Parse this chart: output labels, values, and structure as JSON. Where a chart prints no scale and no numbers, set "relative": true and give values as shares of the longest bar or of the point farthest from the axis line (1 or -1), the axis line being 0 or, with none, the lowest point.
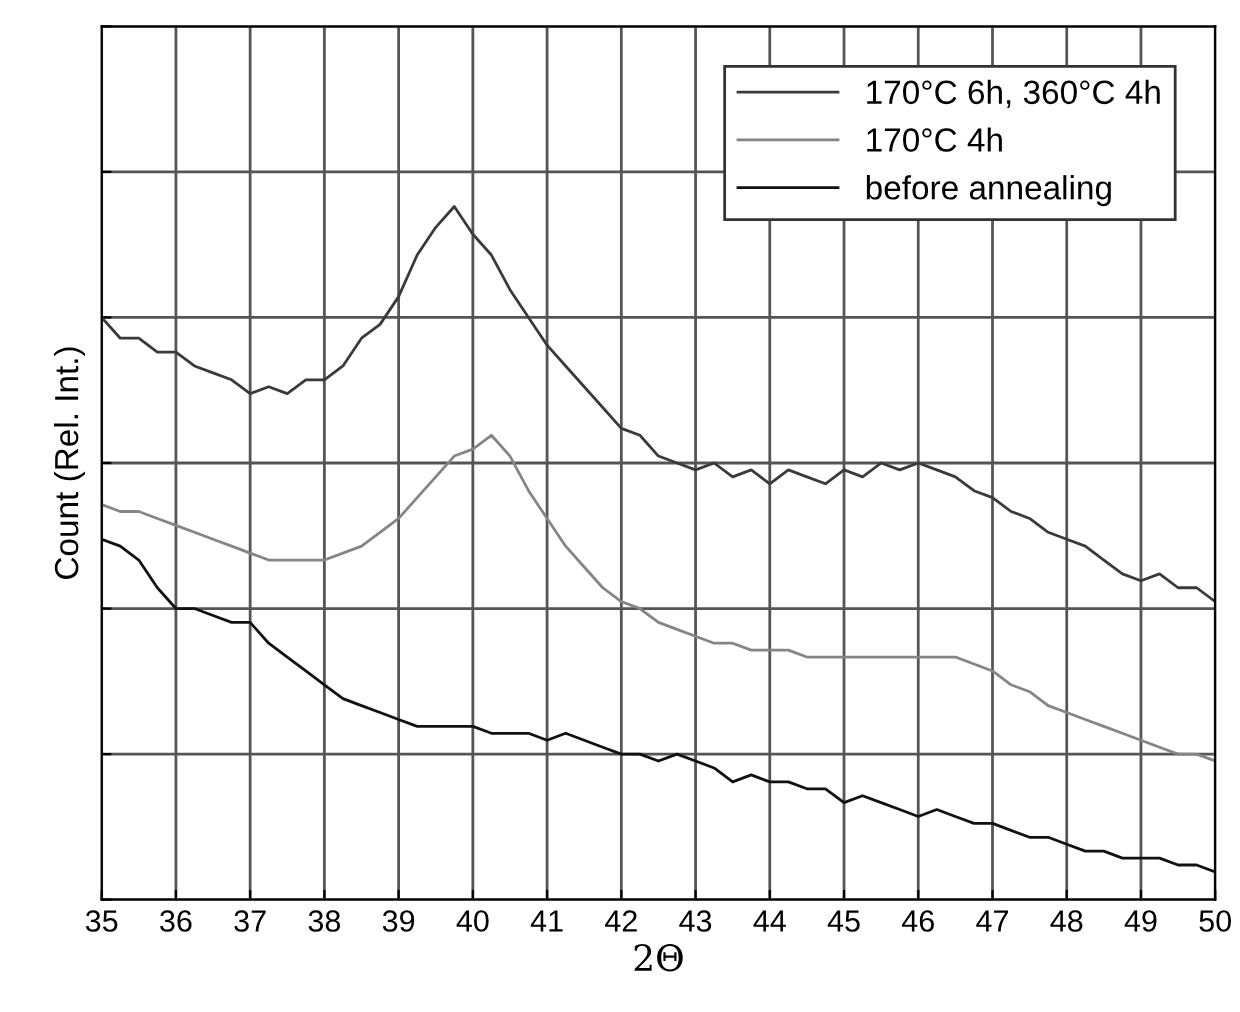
{
  "chart_data": {
    "type": "line",
    "relative": true,
    "xlabel": "2Θ",
    "ylabel": "Count (Rel. Int.)",
    "x": [
      35,
      35.25,
      35.5,
      35.75,
      36,
      36.25,
      36.5,
      36.75,
      37,
      37.25,
      37.5,
      37.75,
      38,
      38.25,
      38.5,
      38.75,
      39,
      39.25,
      39.5,
      39.75,
      40,
      40.25,
      40.5,
      40.75,
      41,
      41.25,
      41.5,
      41.75,
      42,
      42.25,
      42.5,
      42.75,
      43,
      43.25,
      43.5,
      43.75,
      44,
      44.25,
      44.5,
      44.75,
      45,
      45.25,
      45.5,
      45.75,
      46,
      46.25,
      46.5,
      46.75,
      47,
      47.25,
      47.5,
      47.75,
      48,
      48.25,
      48.5,
      48.75,
      49,
      49.25,
      49.5,
      49.75,
      50
    ],
    "series": [
      {
        "name": "170°C 6h, 360°C 4h",
        "color": "#3a3a3a",
        "values": [
          0.84,
          0.81,
          0.81,
          0.79,
          0.79,
          0.77,
          0.76,
          0.75,
          0.73,
          0.74,
          0.73,
          0.75,
          0.75,
          0.77,
          0.81,
          0.83,
          0.87,
          0.93,
          0.97,
          1.0,
          0.96,
          0.93,
          0.88,
          0.84,
          0.8,
          0.77,
          0.74,
          0.71,
          0.68,
          0.67,
          0.64,
          0.63,
          0.62,
          0.63,
          0.61,
          0.62,
          0.6,
          0.62,
          0.61,
          0.6,
          0.62,
          0.61,
          0.63,
          0.62,
          0.63,
          0.62,
          0.61,
          0.59,
          0.58,
          0.56,
          0.55,
          0.53,
          0.52,
          0.51,
          0.49,
          0.47,
          0.46,
          0.47,
          0.45,
          0.45,
          0.43
        ]
      },
      {
        "name": "170°C 4h",
        "color": "#858585",
        "values": [
          0.57,
          0.56,
          0.56,
          0.55,
          0.54,
          0.53,
          0.52,
          0.51,
          0.5,
          0.49,
          0.49,
          0.49,
          0.49,
          0.5,
          0.51,
          0.53,
          0.55,
          0.58,
          0.61,
          0.64,
          0.65,
          0.67,
          0.64,
          0.59,
          0.55,
          0.51,
          0.48,
          0.45,
          0.43,
          0.42,
          0.4,
          0.39,
          0.38,
          0.37,
          0.37,
          0.36,
          0.36,
          0.36,
          0.35,
          0.35,
          0.35,
          0.35,
          0.35,
          0.35,
          0.35,
          0.35,
          0.35,
          0.34,
          0.33,
          0.31,
          0.3,
          0.28,
          0.27,
          0.26,
          0.25,
          0.24,
          0.23,
          0.22,
          0.21,
          0.21,
          0.2
        ]
      },
      {
        "name": "before annealing",
        "color": "#111111",
        "values": [
          0.52,
          0.51,
          0.49,
          0.45,
          0.42,
          0.42,
          0.41,
          0.4,
          0.4,
          0.37,
          0.35,
          0.33,
          0.31,
          0.29,
          0.28,
          0.27,
          0.26,
          0.25,
          0.25,
          0.25,
          0.25,
          0.24,
          0.24,
          0.24,
          0.23,
          0.24,
          0.23,
          0.22,
          0.21,
          0.21,
          0.2,
          0.21,
          0.2,
          0.19,
          0.17,
          0.18,
          0.17,
          0.17,
          0.16,
          0.16,
          0.14,
          0.15,
          0.14,
          0.13,
          0.12,
          0.13,
          0.12,
          0.11,
          0.11,
          0.1,
          0.09,
          0.09,
          0.08,
          0.07,
          0.07,
          0.06,
          0.06,
          0.06,
          0.05,
          0.05,
          0.04
        ]
      }
    ],
    "xlim": [
      35,
      50
    ],
    "xticks": [
      35,
      36,
      37,
      38,
      39,
      40,
      41,
      42,
      43,
      44,
      45,
      46,
      47,
      48,
      49,
      50
    ],
    "grid": true,
    "legend": "top right",
    "tick_labels": "x",
    "line_style": "solid"
  }
}
